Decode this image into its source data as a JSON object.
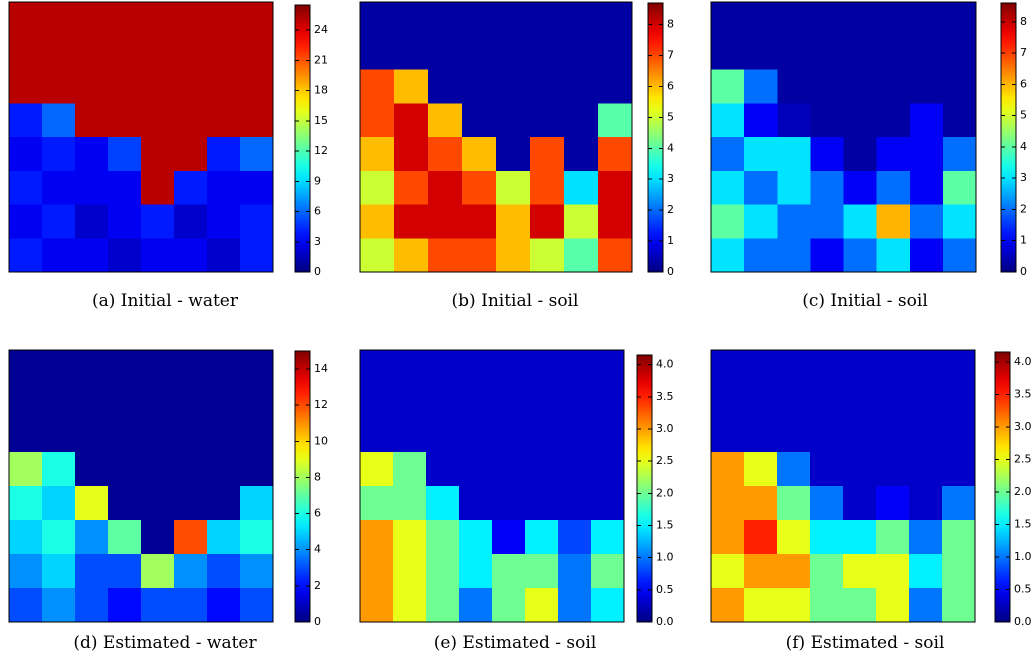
{
  "chart_data": [
    {
      "type": "heatmap",
      "title": "(a) Initial - water",
      "colormap": "jet",
      "clim": [
        0,
        26.5
      ],
      "cticks": [
        0,
        3,
        6,
        9,
        12,
        15,
        18,
        21,
        24
      ],
      "values": [
        [
          25,
          25,
          25,
          25,
          25,
          25,
          25,
          25
        ],
        [
          25,
          25,
          25,
          25,
          25,
          25,
          25,
          25
        ],
        [
          25,
          25,
          25,
          25,
          25,
          25,
          25,
          25
        ],
        [
          4,
          6,
          25,
          25,
          25,
          25,
          25,
          25
        ],
        [
          3,
          4,
          3,
          5,
          25,
          25,
          4,
          6
        ],
        [
          4,
          3,
          3,
          3,
          25,
          4,
          3,
          3
        ],
        [
          3,
          4,
          2,
          3,
          4,
          2,
          3,
          4
        ],
        [
          4,
          3,
          3,
          2,
          3,
          3,
          2,
          4
        ]
      ]
    },
    {
      "type": "heatmap",
      "title": "(b) Initial - soil",
      "colormap": "jet",
      "clim": [
        0,
        8.7
      ],
      "cticks": [
        0,
        1,
        2,
        3,
        4,
        5,
        6,
        7,
        8
      ],
      "values": [
        [
          0.3,
          0.3,
          0.3,
          0.3,
          0.3,
          0.3,
          0.3,
          0.3
        ],
        [
          0.3,
          0.3,
          0.3,
          0.3,
          0.3,
          0.3,
          0.3,
          0.3
        ],
        [
          7,
          6,
          0.3,
          0.3,
          0.3,
          0.3,
          0.3,
          0.3
        ],
        [
          7,
          8,
          6,
          0.3,
          0.3,
          0.3,
          0.3,
          4
        ],
        [
          6,
          8,
          7,
          6,
          0.3,
          7,
          0.3,
          7
        ],
        [
          5,
          7,
          8,
          7,
          5,
          7,
          3,
          8
        ],
        [
          6,
          8,
          8,
          8,
          6,
          8,
          5,
          8
        ],
        [
          5,
          6,
          7,
          7,
          6,
          5,
          4,
          7
        ]
      ]
    },
    {
      "type": "heatmap",
      "title": "(c) Initial - soil",
      "colormap": "jet",
      "clim": [
        0,
        8.6
      ],
      "cticks": [
        0,
        1,
        2,
        3,
        4,
        5,
        6,
        7,
        8
      ],
      "values": [
        [
          0.3,
          0.3,
          0.3,
          0.3,
          0.3,
          0.3,
          0.3,
          0.3
        ],
        [
          0.3,
          0.3,
          0.3,
          0.3,
          0.3,
          0.3,
          0.3,
          0.3
        ],
        [
          4,
          2,
          0.3,
          0.3,
          0.3,
          0.3,
          0.3,
          0.3
        ],
        [
          3,
          1,
          0.5,
          0.3,
          0.3,
          0.3,
          1,
          0.3
        ],
        [
          2,
          3,
          3,
          1,
          0.3,
          1,
          1,
          2
        ],
        [
          3,
          2,
          3,
          2,
          1,
          2,
          1,
          4
        ],
        [
          4,
          3,
          2,
          2,
          3,
          6,
          2,
          3
        ],
        [
          3,
          2,
          2,
          1,
          2,
          3,
          1,
          2
        ]
      ]
    },
    {
      "type": "heatmap",
      "title": "(d) Estimated - water",
      "colormap": "jet",
      "clim": [
        0,
        15
      ],
      "cticks": [
        0,
        2,
        4,
        6,
        8,
        10,
        12,
        14
      ],
      "values": [
        [
          0.3,
          0.3,
          0.3,
          0.3,
          0.3,
          0.3,
          0.3,
          0.3
        ],
        [
          0.3,
          0.3,
          0.3,
          0.3,
          0.3,
          0.3,
          0.3,
          0.3
        ],
        [
          0.3,
          0.3,
          0.3,
          0.3,
          0.3,
          0.3,
          0.3,
          0.3
        ],
        [
          8,
          6,
          0.3,
          0.3,
          0.3,
          0.3,
          0.3,
          0.3
        ],
        [
          6,
          5,
          9,
          0.3,
          0.3,
          0.3,
          0.3,
          5
        ],
        [
          5,
          6,
          4,
          7,
          0.3,
          12,
          5,
          6
        ],
        [
          4,
          5,
          3,
          3,
          8,
          4,
          3,
          4
        ],
        [
          3,
          4,
          3,
          2,
          3,
          3,
          2,
          3
        ]
      ]
    },
    {
      "type": "heatmap",
      "title": "(e) Estimated - soil",
      "colormap": "jet",
      "clim": [
        0,
        4.15
      ],
      "cticks": [
        {
          "value": 0,
          "label": "0.0"
        },
        0.5,
        {
          "value": 1,
          "label": "1.0"
        },
        1.5,
        {
          "value": 2,
          "label": "2.0"
        },
        2.5,
        {
          "value": 3,
          "label": "3.0"
        },
        3.5,
        {
          "value": 4,
          "label": "4.0"
        }
      ],
      "values": [
        [
          0.3,
          0.3,
          0.3,
          0.3,
          0.3,
          0.3,
          0.3,
          0.3
        ],
        [
          0.3,
          0.3,
          0.3,
          0.3,
          0.3,
          0.3,
          0.3,
          0.3
        ],
        [
          0.3,
          0.3,
          0.3,
          0.3,
          0.3,
          0.3,
          0.3,
          0.3
        ],
        [
          2.5,
          2,
          0.3,
          0.3,
          0.3,
          0.3,
          0.3,
          0.3
        ],
        [
          2,
          2,
          1.5,
          0.3,
          0.3,
          0.3,
          0.3,
          0.3
        ],
        [
          3,
          2.5,
          2,
          1.5,
          0.5,
          1.5,
          0.8,
          1.5
        ],
        [
          3,
          2.5,
          2,
          1.5,
          2,
          2,
          1,
          2
        ],
        [
          3,
          2.5,
          2,
          1,
          2,
          2.5,
          1,
          1.5
        ]
      ]
    },
    {
      "type": "heatmap",
      "title": "(f) Estimated - soil",
      "colormap": "jet",
      "clim": [
        0,
        4.15
      ],
      "cticks": [
        {
          "value": 0,
          "label": "0.0"
        },
        0.5,
        {
          "value": 1,
          "label": "1.0"
        },
        1.5,
        {
          "value": 2,
          "label": "2.0"
        },
        2.5,
        {
          "value": 3,
          "label": "3.0"
        },
        3.5,
        {
          "value": 4,
          "label": "4.0"
        }
      ],
      "values": [
        [
          0.3,
          0.3,
          0.3,
          0.3,
          0.3,
          0.3,
          0.3,
          0.3
        ],
        [
          0.3,
          0.3,
          0.3,
          0.3,
          0.3,
          0.3,
          0.3,
          0.3
        ],
        [
          0.3,
          0.3,
          0.3,
          0.3,
          0.3,
          0.3,
          0.3,
          0.3
        ],
        [
          3,
          2.5,
          1,
          0.3,
          0.3,
          0.3,
          0.3,
          0.3
        ],
        [
          3,
          3,
          2,
          1,
          0.3,
          0.5,
          0.3,
          1
        ],
        [
          3,
          3.5,
          2.5,
          1.5,
          1.5,
          2,
          1,
          2
        ],
        [
          2.5,
          3,
          3,
          2,
          2.5,
          2.5,
          1.5,
          2
        ],
        [
          3,
          2.5,
          2.5,
          2,
          2,
          2.5,
          1,
          2
        ]
      ]
    }
  ]
}
